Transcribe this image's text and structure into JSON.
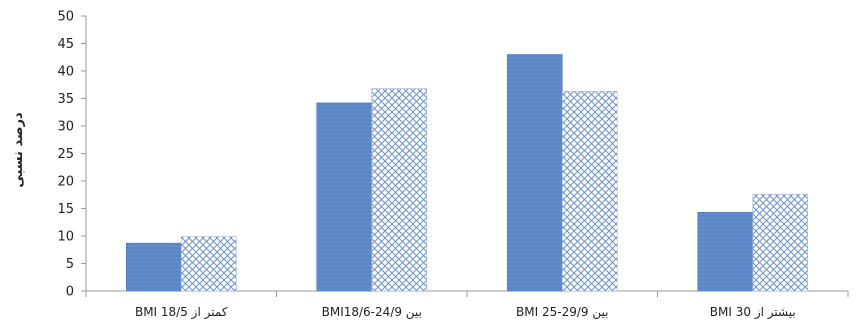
{
  "chart_data": {
    "type": "bar",
    "categories": [
      "کمتر از BMI 18/5",
      "بین BMI18/6-24/9",
      "بین BMI 25-29/9",
      "بیشتر از BMI 30"
    ],
    "series": [
      {
        "values": [
          8.7,
          34.2,
          43.0,
          14.3
        ],
        "color": "#5b86c5",
        "fill_style": "solid"
      },
      {
        "values": [
          9.9,
          36.8,
          36.3,
          17.6
        ],
        "color": "#6f92c8",
        "fill_style": "crosshatch"
      }
    ],
    "ylabel": "درصد نسبی",
    "xlabel": "",
    "ylim": [
      0,
      50
    ],
    "yticks": [
      0,
      5,
      10,
      15,
      20,
      25,
      30,
      35,
      40,
      45,
      50
    ],
    "grid": false,
    "legend": "none"
  }
}
